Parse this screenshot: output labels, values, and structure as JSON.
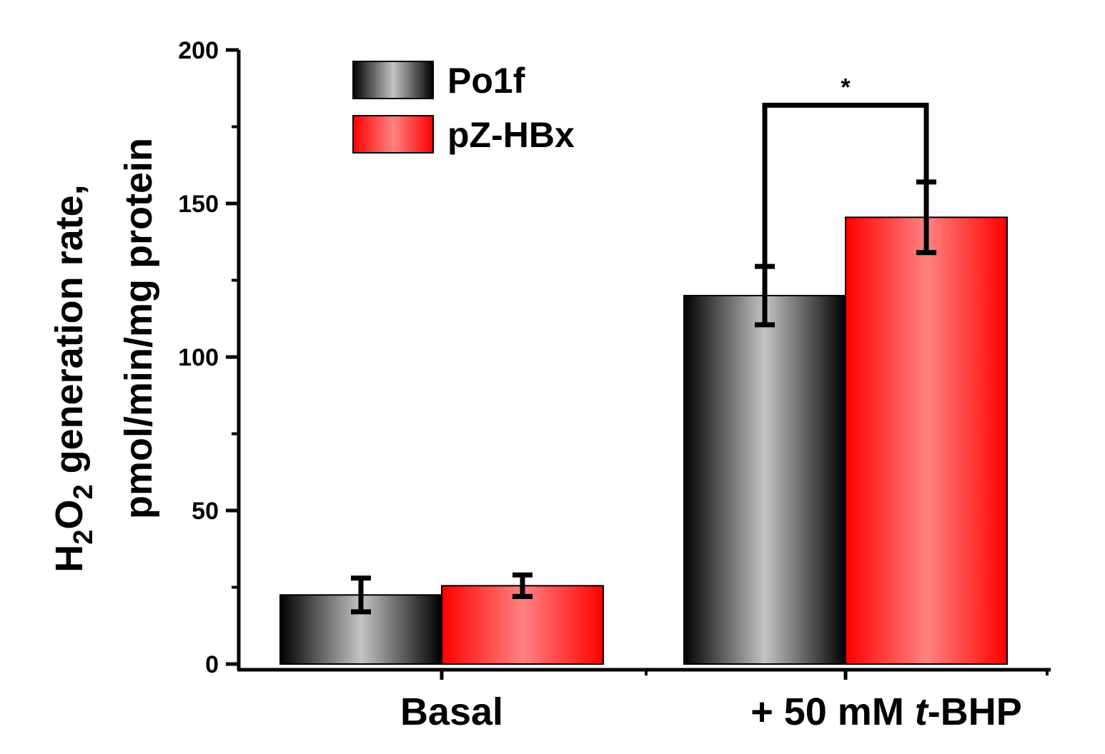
{
  "chart_data": {
    "type": "bar",
    "title": "",
    "xlabel": "",
    "ylabel": {
      "line1_main": "H",
      "line1_sub1": "2",
      "line1_mid": "O",
      "line1_sub2": "2",
      "line1_rest": " generation rate,",
      "line2": "pmol/min/mg protein"
    },
    "ylim": [
      0,
      200
    ],
    "yticks": [
      0,
      50,
      100,
      150,
      200
    ],
    "categories": [
      {
        "prefix": "Basal",
        "italic": "",
        "suffix": ""
      },
      {
        "prefix": "+ 50 mM ",
        "italic": "t",
        "suffix": "-BHP"
      }
    ],
    "series": [
      {
        "name": "Po1f",
        "values": [
          22.5,
          120
        ],
        "errors": [
          5.5,
          9.5
        ],
        "color": "#808080"
      },
      {
        "name": "pZ-HBx",
        "values": [
          25.5,
          145.5
        ],
        "errors": [
          3.5,
          11.5
        ],
        "color": "#ff2020"
      }
    ],
    "significance": {
      "label": "*",
      "category": 1,
      "height": 182
    },
    "legend": "top-left"
  }
}
